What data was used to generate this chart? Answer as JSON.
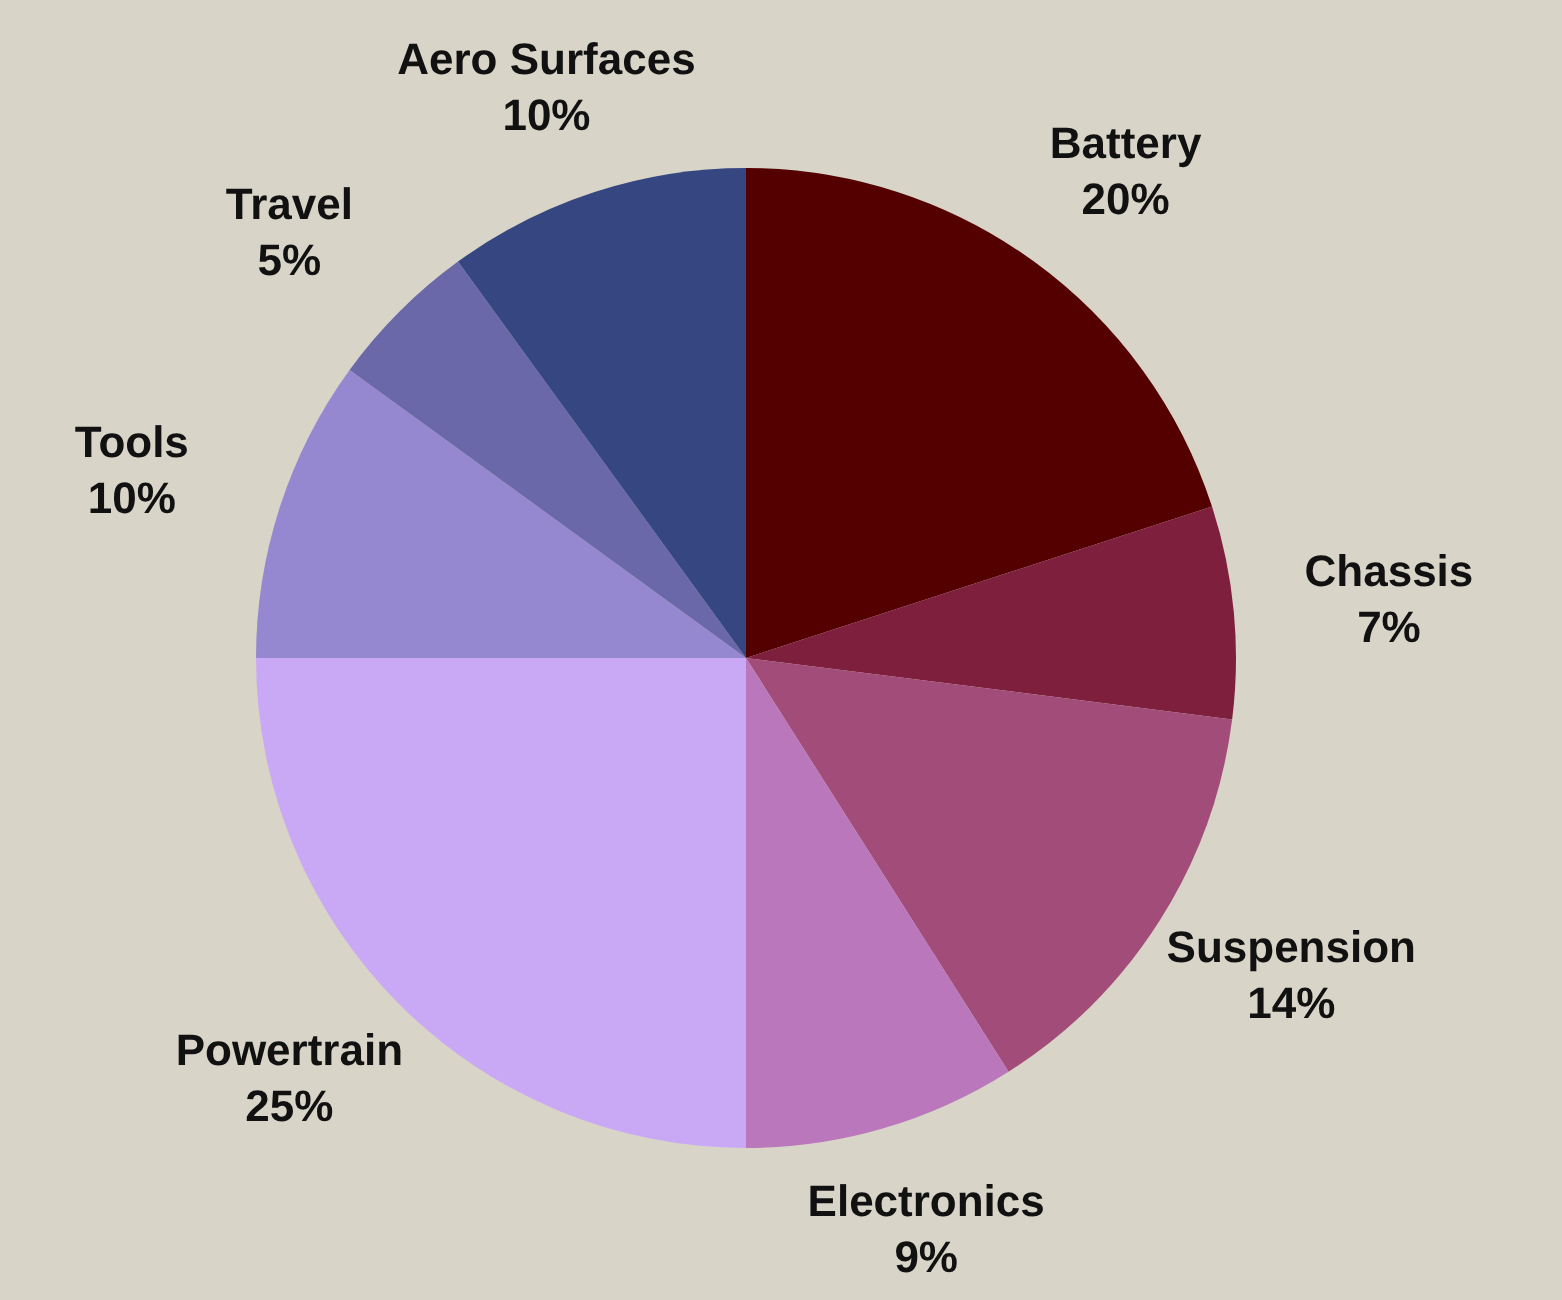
{
  "chart_data": {
    "type": "pie",
    "categories": [
      "Battery",
      "Chassis",
      "Suspension",
      "Electronics",
      "Powertrain",
      "Tools",
      "Travel",
      "Aero Surfaces"
    ],
    "values": [
      20,
      7,
      14,
      9,
      25,
      10,
      5,
      10
    ],
    "colors": [
      "#550000",
      "#7d1f3d",
      "#a24c7a",
      "#bb77bb",
      "#c9a9f5",
      "#9688d0",
      "#6a68a8",
      "#364680"
    ],
    "value_labels": [
      "20%",
      "7%",
      "14%",
      "9%",
      "25%",
      "10%",
      "5%",
      "10%"
    ],
    "legend": false
  }
}
